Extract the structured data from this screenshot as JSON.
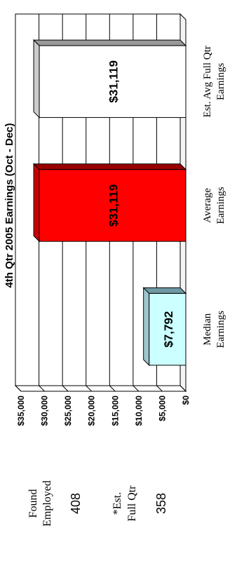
{
  "stats": {
    "found_label_1": "Found",
    "found_label_2": "Employed",
    "found_value": "408",
    "est_label_1": "*Est.",
    "est_label_2": "Full Qtr",
    "est_value": "358"
  },
  "chart_data": {
    "type": "bar",
    "title": "4th Qtr 2005 Earnings (Oct - Dec)",
    "categories": [
      [
        "Median",
        "Earnings"
      ],
      [
        "Average",
        "Earnings"
      ],
      [
        "Est. Avg Full Qtr",
        "Earnings"
      ]
    ],
    "values": [
      7792,
      31119,
      31119
    ],
    "value_labels": [
      "$7,792",
      "$31,119",
      "$31,119"
    ],
    "ylim": [
      0,
      35000
    ],
    "yticks": [
      {
        "value": 0,
        "label": "$0"
      },
      {
        "value": 5000,
        "label": "$5,000"
      },
      {
        "value": 10000,
        "label": "$10,000"
      },
      {
        "value": 15000,
        "label": "$15,000"
      },
      {
        "value": 20000,
        "label": "$20,000"
      },
      {
        "value": 25000,
        "label": "$25,000"
      },
      {
        "value": 30000,
        "label": "$30,000"
      },
      {
        "value": 35000,
        "label": "$35,000"
      }
    ],
    "bar_colors": [
      "#ccffff",
      "#ff0000",
      "#ffffff"
    ],
    "grid": true
  }
}
